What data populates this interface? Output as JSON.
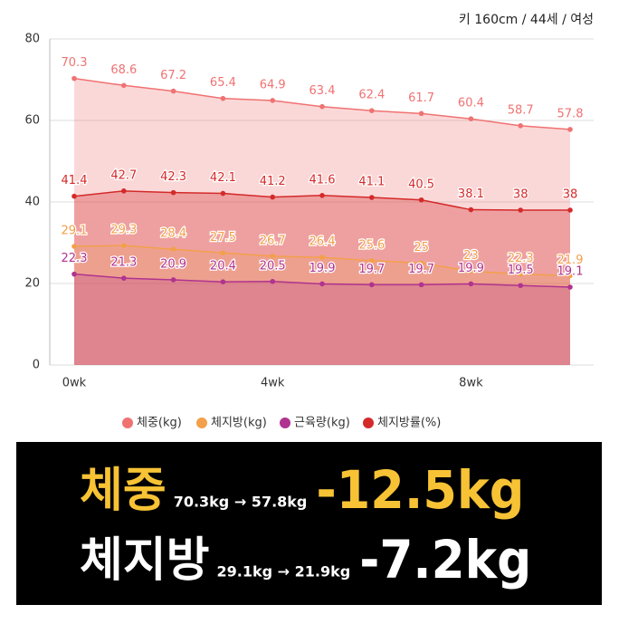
{
  "chart_data": {
    "type": "line",
    "subtitle": "키 160cm / 44세 / 여성",
    "categories": [
      "0wk",
      null,
      null,
      null,
      "4wk",
      null,
      null,
      null,
      "8wk",
      null,
      null
    ],
    "ylim": [
      0,
      80
    ],
    "yticks": [
      0,
      20,
      40,
      60,
      80
    ],
    "grid": true,
    "legend": "bottom",
    "series": [
      {
        "name": "체중(kg)",
        "color": "#f07272",
        "values": [
          70.3,
          68.6,
          67.2,
          65.4,
          64.9,
          63.4,
          62.4,
          61.7,
          60.4,
          58.7,
          57.8
        ]
      },
      {
        "name": "체지방(kg)",
        "color": "#f2a04a",
        "values": [
          29.1,
          29.3,
          28.4,
          27.5,
          26.7,
          26.4,
          25.6,
          25,
          23,
          22.3,
          21.9
        ]
      },
      {
        "name": "근육량(kg)",
        "color": "#b0338f",
        "values": [
          22.3,
          21.3,
          20.9,
          20.4,
          20.5,
          19.9,
          19.7,
          19.7,
          19.9,
          19.5,
          19.1
        ]
      },
      {
        "name": "체지방률(%)",
        "color": "#d42a2a",
        "values": [
          41.4,
          42.7,
          42.3,
          42.1,
          41.2,
          41.6,
          41.1,
          40.5,
          38.1,
          38,
          38
        ]
      }
    ]
  },
  "banner": {
    "rows": [
      {
        "label": "체중",
        "detail": "70.3kg → 57.8kg",
        "change": "-12.5kg"
      },
      {
        "label": "체지방",
        "detail": "29.1kg → 21.9kg",
        "change": "-7.2kg"
      }
    ]
  }
}
